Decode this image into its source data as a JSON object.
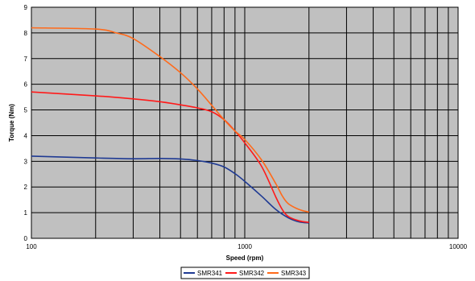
{
  "chart_data": {
    "type": "line",
    "xlabel": "Speed (rpm)",
    "ylabel": "Torque (Nm)",
    "xscale": "log",
    "xlim": [
      100,
      10000
    ],
    "ylim": [
      0,
      9
    ],
    "x_ticks": [
      "100",
      "1000",
      "10000"
    ],
    "y_ticks": [
      "0",
      "1",
      "2",
      "3",
      "4",
      "5",
      "6",
      "7",
      "8",
      "9"
    ],
    "grid": true,
    "plot_background": "#c0c0c0",
    "legend_position": "bottom-center",
    "series": [
      {
        "name": "SMR341",
        "color": "#1f3a93",
        "points": [
          [
            100,
            3.2
          ],
          [
            200,
            3.13
          ],
          [
            300,
            3.1
          ],
          [
            400,
            3.11
          ],
          [
            500,
            3.09
          ],
          [
            600,
            3.03
          ],
          [
            700,
            2.93
          ],
          [
            800,
            2.78
          ],
          [
            900,
            2.52
          ],
          [
            1000,
            2.22
          ],
          [
            1200,
            1.64
          ],
          [
            1400,
            1.12
          ],
          [
            1600,
            0.8
          ],
          [
            1800,
            0.64
          ],
          [
            2000,
            0.6
          ]
        ]
      },
      {
        "name": "SMR342",
        "color": "#ff1a1a",
        "points": [
          [
            100,
            5.7
          ],
          [
            200,
            5.55
          ],
          [
            300,
            5.43
          ],
          [
            400,
            5.32
          ],
          [
            500,
            5.2
          ],
          [
            600,
            5.08
          ],
          [
            700,
            4.93
          ],
          [
            800,
            4.62
          ],
          [
            900,
            4.18
          ],
          [
            1000,
            3.72
          ],
          [
            1200,
            2.8
          ],
          [
            1400,
            1.6
          ],
          [
            1500,
            1.12
          ],
          [
            1600,
            0.85
          ],
          [
            1800,
            0.68
          ],
          [
            2000,
            0.62
          ]
        ]
      },
      {
        "name": "SMR343",
        "color": "#ff6a1a",
        "points": [
          [
            100,
            8.2
          ],
          [
            200,
            8.15
          ],
          [
            250,
            8.0
          ],
          [
            300,
            7.78
          ],
          [
            400,
            7.08
          ],
          [
            500,
            6.45
          ],
          [
            600,
            5.82
          ],
          [
            700,
            5.18
          ],
          [
            800,
            4.62
          ],
          [
            900,
            4.18
          ],
          [
            1000,
            3.85
          ],
          [
            1200,
            3.05
          ],
          [
            1400,
            2.12
          ],
          [
            1500,
            1.65
          ],
          [
            1600,
            1.35
          ],
          [
            1800,
            1.12
          ],
          [
            2000,
            1.02
          ]
        ]
      }
    ]
  }
}
